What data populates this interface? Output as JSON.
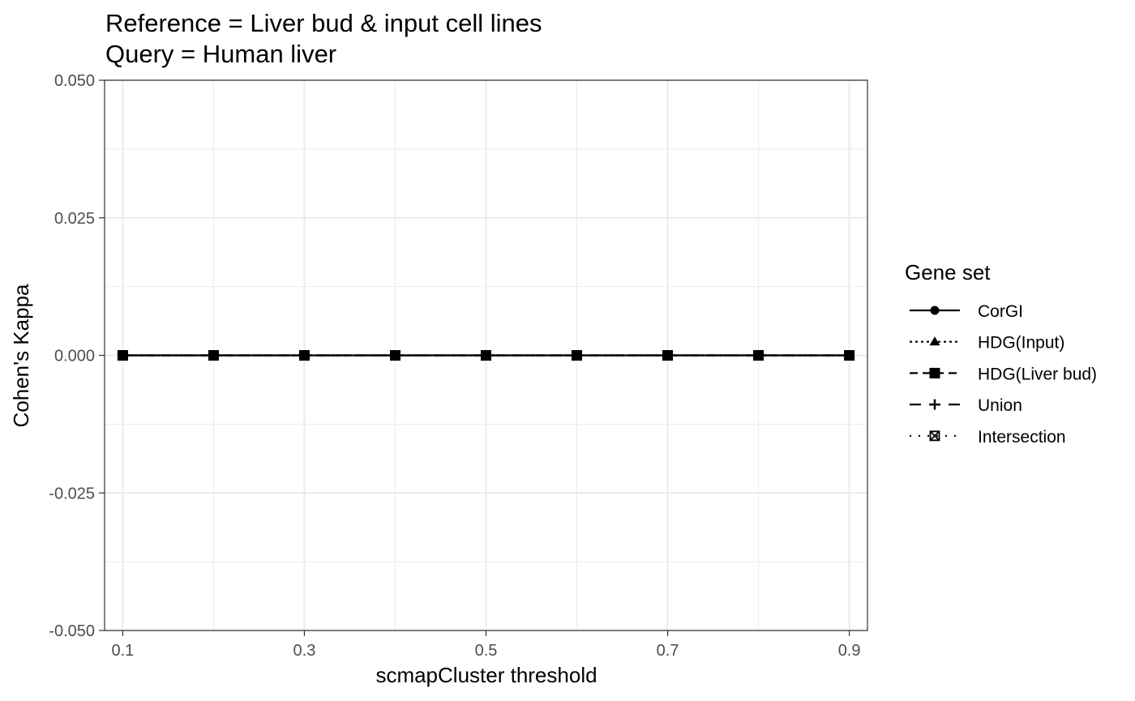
{
  "chart_data": {
    "type": "line",
    "title_lines": [
      "Reference = Liver bud & input cell lines",
      "Query = Human liver"
    ],
    "xlabel": "scmapCluster threshold",
    "ylabel": "Cohen's Kappa",
    "x": [
      0.1,
      0.2,
      0.3,
      0.4,
      0.5,
      0.6,
      0.7,
      0.8,
      0.9
    ],
    "xlim": [
      0.08,
      0.92
    ],
    "ylim": [
      -0.05,
      0.05
    ],
    "x_ticks": [
      0.1,
      0.3,
      0.5,
      0.7,
      0.9
    ],
    "x_tick_labels": [
      "0.1",
      "0.3",
      "0.5",
      "0.7",
      "0.9"
    ],
    "y_ticks": [
      -0.05,
      -0.025,
      0,
      0.025,
      0.05
    ],
    "y_tick_labels": [
      "-0.050",
      "-0.025",
      "0.000",
      "0.025",
      "0.050"
    ],
    "grid": true,
    "legend": {
      "title": "Gene set",
      "placement": "right"
    },
    "series": [
      {
        "name": "CorGI",
        "linetype": "solid",
        "marker": "circle",
        "values": [
          0,
          0,
          0,
          0,
          0,
          0,
          0,
          0,
          0
        ]
      },
      {
        "name": "HDG(Input)",
        "linetype": "dotted",
        "marker": "triangle",
        "values": [
          0,
          0,
          0,
          0,
          0,
          0,
          0,
          0,
          0
        ]
      },
      {
        "name": "HDG(Liver bud)",
        "linetype": "dashed",
        "marker": "square",
        "values": [
          0,
          0,
          0,
          0,
          0,
          0,
          0,
          0,
          0
        ]
      },
      {
        "name": "Union",
        "linetype": "longdash",
        "marker": "plus",
        "values": [
          0,
          0,
          0,
          0,
          0,
          0,
          0,
          0,
          0
        ]
      },
      {
        "name": "Intersection",
        "linetype": "dotted-sparse",
        "marker": "boxed-x",
        "values": [
          0,
          0,
          0,
          0,
          0,
          0,
          0,
          0,
          0
        ]
      }
    ],
    "colors": {
      "line": "#000000",
      "grid": "#ebebeb",
      "panel_border": "#333333"
    }
  }
}
